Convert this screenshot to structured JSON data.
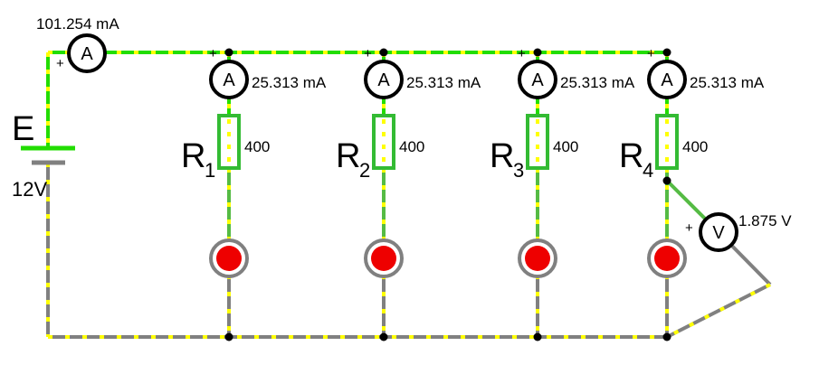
{
  "source": {
    "symbol": "E",
    "voltage": "12V",
    "meter_letter": "A",
    "current": "101.254 mA",
    "plus": "+"
  },
  "branches": [
    {
      "resistor_symbol": "R",
      "resistor_index": "1",
      "resistance": "400",
      "ammeter_letter": "A",
      "current": "25.313 mA",
      "plus": "+"
    },
    {
      "resistor_symbol": "R",
      "resistor_index": "2",
      "resistance": "400",
      "ammeter_letter": "A",
      "current": "25.313 mA",
      "plus": "+"
    },
    {
      "resistor_symbol": "R",
      "resistor_index": "3",
      "resistance": "400",
      "ammeter_letter": "A",
      "current": "25.313 mA",
      "plus": "+"
    },
    {
      "resistor_symbol": "R",
      "resistor_index": "4",
      "resistance": "400",
      "ammeter_letter": "A",
      "current": "25.313 mA",
      "plus": "+"
    }
  ],
  "voltmeter": {
    "letter": "V",
    "voltage": "1.875 V",
    "plus": "+"
  },
  "colors": {
    "hot_wire": "#22dd00",
    "return_wire": "#808080",
    "branch_wire": "#55bb44",
    "resistor": "#33bb33",
    "current_dots": "#ffff00",
    "lamp": "#ee0000",
    "lamp_ring": "#808080"
  }
}
